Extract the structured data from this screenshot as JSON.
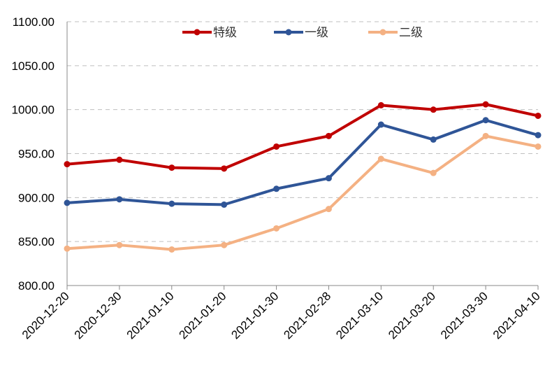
{
  "chart_data": {
    "type": "line",
    "title": "",
    "xlabel": "",
    "ylabel": "",
    "categories": [
      "2020-12-20",
      "2020-12-30",
      "2021-01-10",
      "2021-01-20",
      "2021-01-30",
      "2021-02-28",
      "2021-03-10",
      "2021-03-20",
      "2021-03-30",
      "2021-04-10"
    ],
    "ylim": [
      800,
      1100
    ],
    "yticks": [
      "800.00",
      "850.00",
      "900.00",
      "950.00",
      "1000.00",
      "1050.00",
      "1100.00"
    ],
    "grid": true,
    "legend_position": "top",
    "series": [
      {
        "name": "特级",
        "color": "#c00000",
        "values": [
          938,
          943,
          934,
          933,
          958,
          970,
          1005,
          1000,
          1006,
          993
        ]
      },
      {
        "name": "一级",
        "color": "#2f5597",
        "values": [
          894,
          898,
          893,
          892,
          910,
          922,
          983,
          966,
          988,
          971
        ]
      },
      {
        "name": "二级",
        "color": "#f4b183",
        "values": [
          842,
          846,
          841,
          846,
          865,
          887,
          944,
          928,
          970,
          958
        ]
      }
    ]
  }
}
